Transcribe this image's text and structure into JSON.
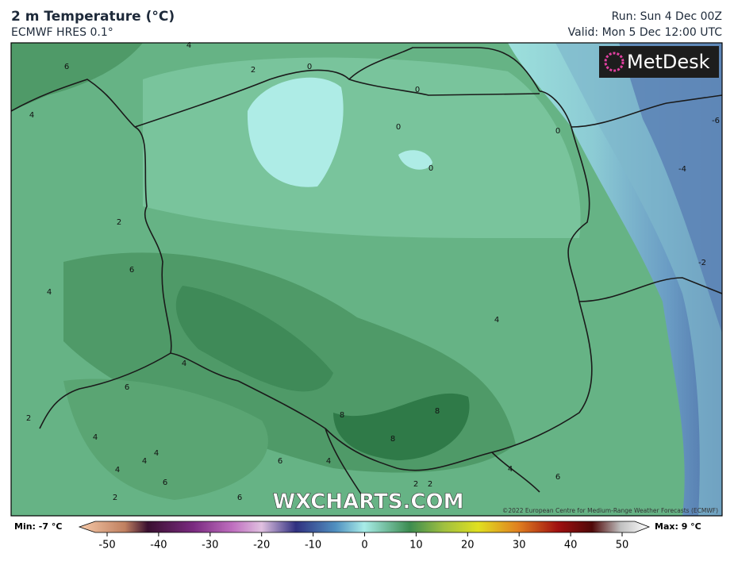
{
  "header": {
    "title": "2 m Temperature (°C)",
    "subtitle": "ECMWF HRES 0.1°",
    "run": "Run: Sun 4 Dec 00Z",
    "valid": "Valid: Mon 5 Dec 12:00 UTC"
  },
  "logo": "MetDesk",
  "watermark": "WXCHARTS.COM",
  "copyright": "©2022 European Centre for Medium-Range Weather Forecasts (ECMWF)",
  "legend": {
    "min": "Min: -7 °C",
    "max": "Max: 9 °C",
    "lim": [
      -50,
      50
    ],
    "ticks": [
      -50,
      -40,
      -30,
      -20,
      -10,
      0,
      10,
      20,
      30,
      40,
      50
    ]
  },
  "contour_labels": [
    "0",
    "0",
    "0",
    "0",
    "0",
    "2",
    "2",
    "-2",
    "4",
    "4",
    "4",
    "4",
    "4",
    "4",
    "4",
    "4",
    "4",
    "4",
    "4",
    "6",
    "6",
    "6",
    "6",
    "6",
    "6",
    "6",
    "8",
    "8",
    "8",
    "-6",
    "-4",
    "2",
    "2",
    "2",
    "2"
  ]
}
